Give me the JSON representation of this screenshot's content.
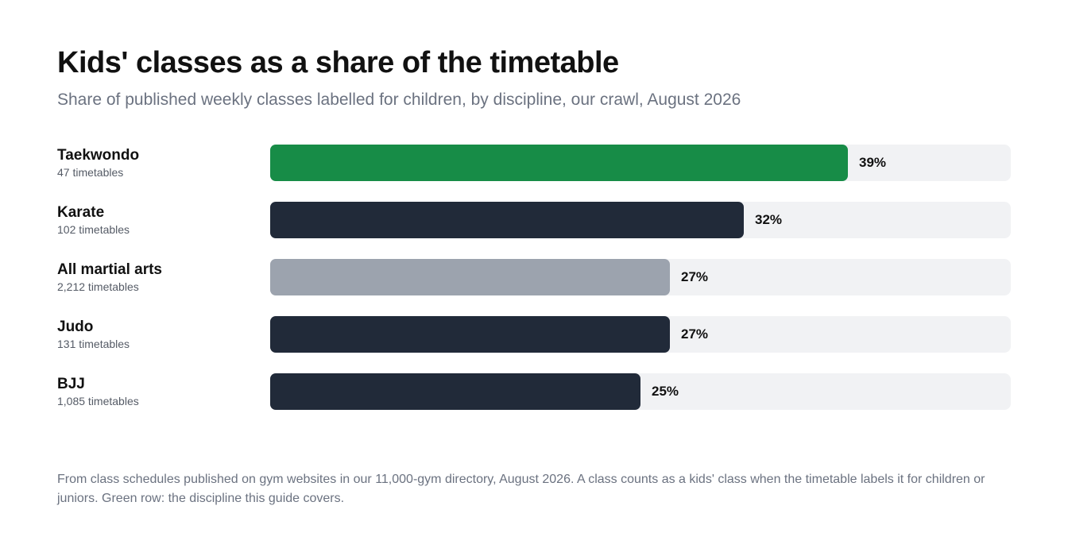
{
  "header": {
    "title": "Kids' classes as a share of the timetable",
    "subtitle": "Share of published weekly classes labelled for children, by discipline, our crawl, August 2026"
  },
  "colors": {
    "highlight": "#178c47",
    "default": "#212a39",
    "reference": "#9ca3ae",
    "track": "#f1f2f4"
  },
  "chart_data": {
    "type": "bar",
    "orientation": "horizontal",
    "title": "Kids' classes as a share of the timetable",
    "subtitle": "Share of published weekly classes labelled for children, by discipline, our crawl, August 2026",
    "xlim": [
      0,
      50
    ],
    "grid": false,
    "categories": [
      "Taekwondo",
      "Karate",
      "All martial arts",
      "Judo",
      "BJJ"
    ],
    "rows": [
      {
        "name": "Taekwondo",
        "count_label": "47 timetables",
        "value": 39,
        "value_label": "39%",
        "style": "highlight"
      },
      {
        "name": "Karate",
        "count_label": "102 timetables",
        "value": 32,
        "value_label": "32%",
        "style": "default"
      },
      {
        "name": "All martial arts",
        "count_label": "2,212 timetables",
        "value": 27,
        "value_label": "27%",
        "style": "reference"
      },
      {
        "name": "Judo",
        "count_label": "131 timetables",
        "value": 27,
        "value_label": "27%",
        "style": "default"
      },
      {
        "name": "BJJ",
        "count_label": "1,085 timetables",
        "value": 25,
        "value_label": "25%",
        "style": "default"
      }
    ]
  },
  "footer": {
    "note": "From class schedules published on gym websites in our 11,000-gym directory, August 2026. A class counts as a kids' class when the timetable labels it for children or juniors. Green row: the discipline this guide covers."
  }
}
